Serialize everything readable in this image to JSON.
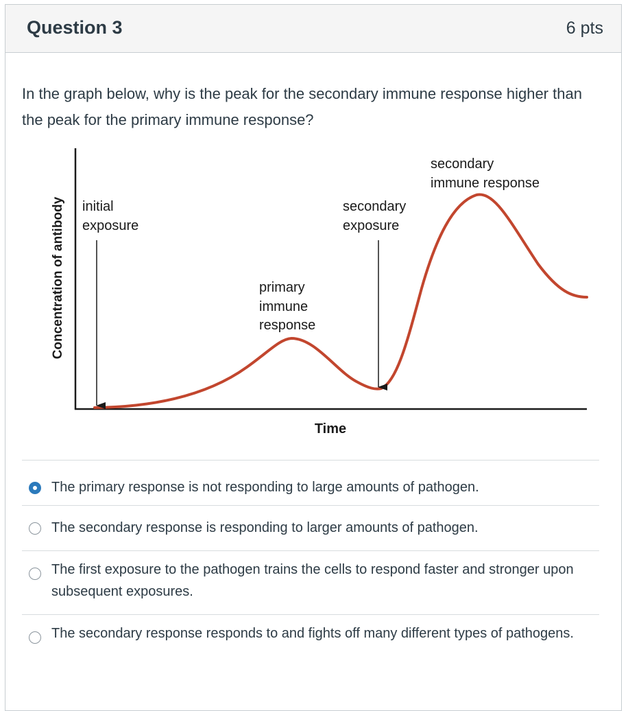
{
  "question": {
    "title": "Question 3",
    "points": "6 pts",
    "text": "In the graph below, why is the peak for the secondary immune response higher than the peak for the primary immune response?"
  },
  "graph": {
    "ylabel": "Concentration of antibody",
    "xlabel": "Time",
    "labels": {
      "initial_1": "initial",
      "initial_2": "exposure",
      "secexp_1": "secondary",
      "secexp_2": "exposure",
      "primary_1": "primary",
      "primary_2": "immune",
      "primary_3": "response",
      "secresp_1": "secondary",
      "secresp_2": "immune response"
    },
    "curve_color": "#c2462e"
  },
  "answers": [
    {
      "label": "The primary response is not responding to large amounts of pathogen.",
      "selected": true
    },
    {
      "label": "The secondary response is responding to larger amounts of pathogen.",
      "selected": false
    },
    {
      "label": "The first exposure to the pathogen trains the cells to respond faster and stronger upon subsequent exposures.",
      "selected": false
    },
    {
      "label": "The secondary response responds to and fights off many different types of pathogens.",
      "selected": false
    }
  ]
}
